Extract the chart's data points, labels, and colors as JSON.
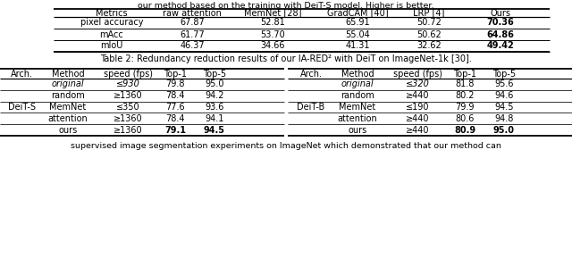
{
  "table1_caption_above": "our method based on the training with DeiT-S model. Higher is better.",
  "table1_columns": [
    "Metrics",
    "raw attention",
    "MemNet [28]",
    "GradCAM [40]",
    "LRP [4]",
    "Ours"
  ],
  "table1_rows": [
    [
      "pixel accuracy",
      "67.87",
      "52.81",
      "65.91",
      "50.72",
      "70.36"
    ],
    [
      "mAcc",
      "61.77",
      "53.70",
      "55.04",
      "50.62",
      "64.86"
    ],
    [
      "mIoU",
      "46.37",
      "34.66",
      "41.31",
      "32.62",
      "49.42"
    ]
  ],
  "table2_caption": "Table 2: Redundancy reduction results of our IA-RED² with DeiT on ImageNet-1k [30].",
  "table2_left_rows": [
    [
      "",
      "original",
      "≤930",
      "79.8",
      "95.0"
    ],
    [
      "",
      "random",
      "≥1360",
      "78.4",
      "94.2"
    ],
    [
      "DeiT-S",
      "MemNet",
      "≤350",
      "77.6",
      "93.6"
    ],
    [
      "",
      "attention",
      "≥1360",
      "78.4",
      "94.1"
    ],
    [
      "",
      "ours",
      "≥1360",
      "79.1",
      "94.5"
    ]
  ],
  "table2_right_rows": [
    [
      "",
      "original",
      "≤320",
      "81.8",
      "95.6"
    ],
    [
      "",
      "random",
      "≥440",
      "80.2",
      "94.6"
    ],
    [
      "DeiT-B",
      "MemNet",
      "≤190",
      "79.9",
      "94.5"
    ],
    [
      "",
      "attention",
      "≥440",
      "80.6",
      "94.8"
    ],
    [
      "",
      "ours",
      "≥440",
      "80.9",
      "95.0"
    ]
  ],
  "caption_below": "supervised image segmentation experiments on ImageNet which demonstrated that our method can"
}
